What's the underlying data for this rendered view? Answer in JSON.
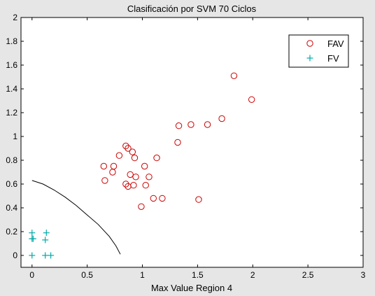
{
  "chart_data": {
    "type": "scatter",
    "title": "Clasificación por SVM 70 Ciclos",
    "xlabel": "Max Value Region 4",
    "ylabel": "",
    "xlim": [
      -0.1,
      3
    ],
    "ylim": [
      -0.1,
      2
    ],
    "xticks": [
      "0",
      "0.5",
      "1",
      "1.5",
      "2",
      "2.5",
      "3"
    ],
    "yticks": [
      "0",
      "0.2",
      "0.4",
      "0.6",
      "0.8",
      "1",
      "1.2",
      "1.4",
      "1.6",
      "1.8",
      "2"
    ],
    "xtick_values": [
      0,
      0.5,
      1,
      1.5,
      2,
      2.5,
      3
    ],
    "ytick_values": [
      0,
      0.2,
      0.4,
      0.6,
      0.8,
      1,
      1.2,
      1.4,
      1.6,
      1.8,
      2
    ],
    "grid": false,
    "legend_position": "top-right",
    "series": [
      {
        "name": "FAV",
        "marker": "circle",
        "color": "#cc0000",
        "points": [
          [
            1.83,
            1.51
          ],
          [
            1.99,
            1.31
          ],
          [
            1.72,
            1.15
          ],
          [
            1.33,
            1.09
          ],
          [
            1.44,
            1.1
          ],
          [
            1.59,
            1.1
          ],
          [
            1.32,
            0.95
          ],
          [
            0.85,
            0.92
          ],
          [
            0.87,
            0.9
          ],
          [
            0.91,
            0.87
          ],
          [
            0.93,
            0.82
          ],
          [
            0.79,
            0.84
          ],
          [
            1.13,
            0.82
          ],
          [
            0.65,
            0.75
          ],
          [
            0.74,
            0.75
          ],
          [
            1.02,
            0.75
          ],
          [
            0.73,
            0.7
          ],
          [
            0.89,
            0.68
          ],
          [
            0.94,
            0.66
          ],
          [
            1.06,
            0.66
          ],
          [
            0.66,
            0.63
          ],
          [
            0.85,
            0.6
          ],
          [
            0.92,
            0.59
          ],
          [
            1.03,
            0.59
          ],
          [
            0.87,
            0.58
          ],
          [
            1.1,
            0.48
          ],
          [
            1.18,
            0.48
          ],
          [
            1.51,
            0.47
          ],
          [
            0.99,
            0.41
          ]
        ]
      },
      {
        "name": "FV",
        "marker": "plus",
        "color": "#00aaaa",
        "points": [
          [
            0.0,
            0.19
          ],
          [
            0.13,
            0.19
          ],
          [
            0.0,
            0.14
          ],
          [
            0.01,
            0.14
          ],
          [
            0.12,
            0.13
          ],
          [
            0.0,
            0.0
          ],
          [
            0.12,
            0.0
          ],
          [
            0.17,
            0.0
          ]
        ]
      }
    ],
    "boundary": {
      "color": "#000000",
      "points": [
        [
          0.0,
          0.63
        ],
        [
          0.1,
          0.6
        ],
        [
          0.2,
          0.55
        ],
        [
          0.3,
          0.49
        ],
        [
          0.4,
          0.42
        ],
        [
          0.5,
          0.34
        ],
        [
          0.6,
          0.26
        ],
        [
          0.7,
          0.16
        ],
        [
          0.76,
          0.08
        ],
        [
          0.8,
          0.01
        ]
      ]
    }
  }
}
